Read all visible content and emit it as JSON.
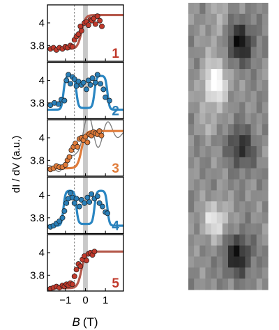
{
  "chart_data": {
    "type": "scatter",
    "ylabel": "dI / dV (a.u.)",
    "xlabel_italic": "B",
    "xlabel_unit": "(T)",
    "xlim": [
      -1.9,
      1.9
    ],
    "ylim": [
      3.66,
      4.16
    ],
    "x_ticks": [
      -1,
      0,
      1
    ],
    "x_tick_labels": [
      "−1",
      "0",
      "1"
    ],
    "y_ticks": [
      3.8,
      4.0
    ],
    "y_tick_labels": [
      "3.8",
      "4"
    ],
    "dashed_line_x": -0.55,
    "shaded_band": [
      -0.12,
      0.12
    ],
    "colors": {
      "red": "#c0392b",
      "red_fit": "#b5594c",
      "blue": "#2a7fb8",
      "blue_fit": "#2a86c2",
      "orange": "#e07b39",
      "gray_model": "#7a7a7a",
      "band": "#c8c8c8",
      "image_mid": "#8c8c8c"
    },
    "panels": [
      {
        "label": "1",
        "color": "#c0392b",
        "fit_color": "#b5594c",
        "fit": "step",
        "points": [
          [
            -1.75,
            3.77
          ],
          [
            -1.6,
            3.78
          ],
          [
            -1.45,
            3.76
          ],
          [
            -1.3,
            3.78
          ],
          [
            -1.15,
            3.77
          ],
          [
            -1.0,
            3.79
          ],
          [
            -0.9,
            3.78
          ],
          [
            -0.75,
            3.8
          ],
          [
            -0.65,
            3.79
          ],
          [
            -0.55,
            3.85
          ],
          [
            -0.45,
            3.88
          ],
          [
            -0.35,
            3.9
          ],
          [
            -0.25,
            3.97
          ],
          [
            -0.2,
            3.93
          ],
          [
            -0.05,
            4.0
          ],
          [
            0.05,
            4.01
          ],
          [
            0.15,
            3.98
          ],
          [
            0.25,
            4.03
          ],
          [
            0.32,
            4.02
          ],
          [
            0.42,
            4.04
          ],
          [
            0.5,
            3.99
          ],
          [
            0.6,
            4.06
          ],
          [
            0.72,
            4.02
          ],
          [
            0.82,
            3.97
          ]
        ]
      },
      {
        "label": "2",
        "color": "#2a7fb8",
        "fit_color": "#2a86c2",
        "fit": "dip",
        "points": [
          [
            -1.75,
            3.78
          ],
          [
            -1.55,
            3.8
          ],
          [
            -1.35,
            3.79
          ],
          [
            -1.2,
            3.83
          ],
          [
            -1.05,
            3.82
          ],
          [
            -0.95,
            4.0
          ],
          [
            -0.85,
            4.05
          ],
          [
            -0.75,
            3.97
          ],
          [
            -0.65,
            4.03
          ],
          [
            -0.55,
            4.01
          ],
          [
            -0.45,
            3.95
          ],
          [
            -0.35,
            3.99
          ],
          [
            -0.2,
            3.96
          ],
          [
            -0.1,
            3.98
          ],
          [
            0.05,
            3.92
          ],
          [
            0.15,
            4.0
          ],
          [
            0.25,
            3.96
          ],
          [
            0.35,
            4.02
          ],
          [
            0.5,
            3.98
          ],
          [
            0.6,
            4.05
          ],
          [
            0.75,
            3.97
          ],
          [
            0.9,
            3.92
          ],
          [
            1.0,
            3.85
          ],
          [
            1.2,
            3.82
          ]
        ]
      },
      {
        "label": "3",
        "color": "#e07b39",
        "fit_color": "#e07b39",
        "fit": "step",
        "model": true,
        "points": [
          [
            -1.75,
            3.72
          ],
          [
            -1.6,
            3.73
          ],
          [
            -1.45,
            3.75
          ],
          [
            -1.3,
            3.74
          ],
          [
            -1.15,
            3.74
          ],
          [
            -1.0,
            3.76
          ],
          [
            -0.9,
            3.8
          ],
          [
            -0.8,
            3.83
          ],
          [
            -0.7,
            3.89
          ],
          [
            -0.6,
            3.92
          ],
          [
            -0.5,
            3.95
          ],
          [
            -0.4,
            3.92
          ],
          [
            -0.3,
            3.99
          ],
          [
            -0.2,
            4.0
          ],
          [
            -0.1,
            3.98
          ],
          [
            0.0,
            4.01
          ],
          [
            0.1,
            3.96
          ],
          [
            0.2,
            4.03
          ],
          [
            0.3,
            4.02
          ],
          [
            0.4,
            4.05
          ],
          [
            0.5,
            4.04
          ],
          [
            0.6,
            4.03
          ],
          [
            0.7,
            4.06
          ],
          [
            0.8,
            4.02
          ]
        ]
      },
      {
        "label": "4",
        "color": "#2a7fb8",
        "fit_color": "#2a86c2",
        "fit": "dip",
        "points": [
          [
            -1.75,
            3.72
          ],
          [
            -1.6,
            3.73
          ],
          [
            -1.45,
            3.75
          ],
          [
            -1.3,
            3.77
          ],
          [
            -1.15,
            3.8
          ],
          [
            -1.05,
            3.86
          ],
          [
            -0.95,
            3.93
          ],
          [
            -0.85,
            3.97
          ],
          [
            -0.75,
            4.02
          ],
          [
            -0.65,
            3.98
          ],
          [
            -0.55,
            3.93
          ],
          [
            -0.45,
            3.97
          ],
          [
            -0.3,
            3.9
          ],
          [
            -0.2,
            3.96
          ],
          [
            -0.05,
            3.93
          ],
          [
            0.1,
            3.98
          ],
          [
            0.2,
            3.94
          ],
          [
            0.3,
            4.01
          ],
          [
            0.45,
            3.97
          ],
          [
            0.6,
            3.99
          ],
          [
            0.7,
            3.93
          ],
          [
            0.85,
            3.9
          ],
          [
            1.0,
            3.85
          ],
          [
            1.1,
            3.84
          ]
        ]
      },
      {
        "label": "5",
        "color": "#c0392b",
        "fit_color": "#b5594c",
        "fit": "step",
        "points": [
          [
            -1.75,
            3.68
          ],
          [
            -1.6,
            3.69
          ],
          [
            -1.45,
            3.7
          ],
          [
            -1.3,
            3.69
          ],
          [
            -1.15,
            3.71
          ],
          [
            -1.05,
            3.7
          ],
          [
            -0.95,
            3.72
          ],
          [
            -0.85,
            3.71
          ],
          [
            -0.75,
            3.73
          ],
          [
            -0.65,
            3.72
          ],
          [
            -0.55,
            3.79
          ],
          [
            -0.45,
            3.85
          ],
          [
            -0.35,
            3.9
          ],
          [
            -0.25,
            3.88
          ],
          [
            -0.15,
            3.94
          ],
          [
            -0.05,
            3.97
          ],
          [
            0.05,
            3.93
          ],
          [
            0.15,
            3.99
          ],
          [
            0.25,
            4.0
          ],
          [
            0.35,
            3.98
          ],
          [
            0.45,
            4.01
          ]
        ]
      }
    ],
    "image": {
      "rows": 26,
      "cols": 14,
      "bright_spots": [
        [
          0.35,
          0.28,
          0.95
        ],
        [
          0.34,
          0.76,
          0.92
        ],
        [
          0.55,
          0.53,
          0.68
        ]
      ],
      "dark_spots": [
        [
          0.65,
          0.14,
          0.08
        ],
        [
          0.64,
          0.51,
          0.1
        ],
        [
          0.62,
          0.88,
          0.1
        ]
      ]
    }
  }
}
